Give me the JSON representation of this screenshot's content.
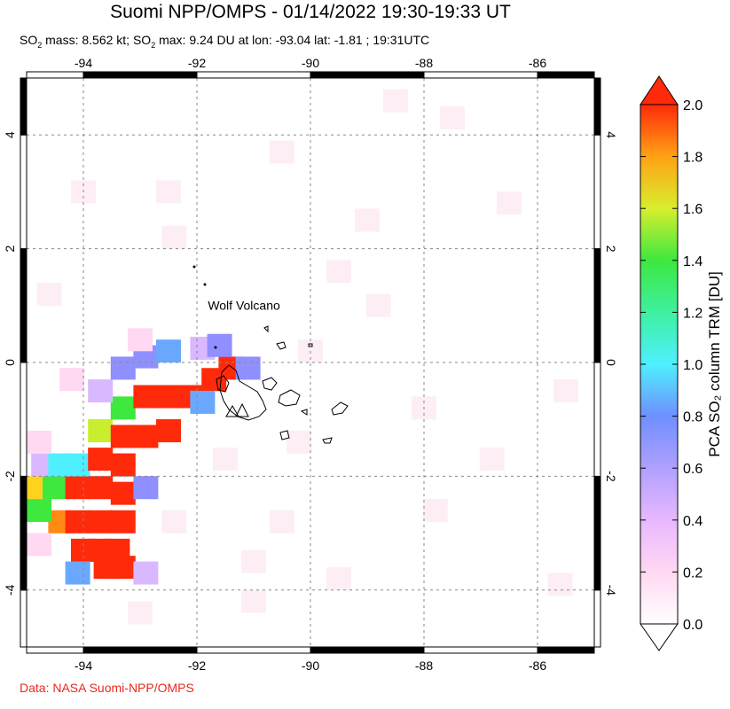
{
  "title": "Suomi NPP/OMPS - 01/14/2022 19:30-19:33 UT",
  "subtitle": {
    "so2_1": "SO",
    "mass_label": " mass: 8.562 kt; SO",
    "max_label": " max: 9.24 DU at lon: -93.04 lat: -1.81 ; 19:31UTC",
    "sub": "2"
  },
  "credit": "Data: NASA Suomi-NPP/OMPS",
  "map": {
    "lon_range": [
      -95,
      -85
    ],
    "lat_range": [
      -5,
      5
    ],
    "lon_ticks": [
      -94,
      -92,
      -90,
      -88,
      -86
    ],
    "lat_ticks": [
      -4,
      -2,
      0,
      2,
      4
    ],
    "lon_tick_labels": [
      "-94",
      "-92",
      "-90",
      "-88",
      "-86"
    ],
    "lat_tick_labels": [
      "-4",
      "-2",
      "0",
      "2",
      "4"
    ],
    "annotation": {
      "text": "Wolf Volcano",
      "lon": -91.37,
      "lat": 0.02
    },
    "grid": "dashed"
  },
  "colorbar": {
    "label": "PCA SO₂ column TRM [DU]",
    "min": 0.0,
    "max": 2.0,
    "tick_labels": [
      "0.0",
      "0.2",
      "0.4",
      "0.6",
      "0.8",
      "1.0",
      "1.2",
      "1.4",
      "1.6",
      "1.8",
      "2.0"
    ],
    "colors": [
      "#ffffff",
      "#ffd8f2",
      "#d9b8ff",
      "#8f8fff",
      "#6aa8ff",
      "#4ef0ff",
      "#3ef07a",
      "#3ee83e",
      "#c8ee2e",
      "#ffd21e",
      "#ff8a12",
      "#ff2a0a"
    ]
  },
  "so2_pixels": [
    {
      "lon": -93.6,
      "lat": -3.6,
      "v": 2.0
    },
    {
      "lon": -93.3,
      "lat": -3.6,
      "v": 2.0
    },
    {
      "lon": -94.0,
      "lat": -3.3,
      "v": 2.0
    },
    {
      "lon": -93.7,
      "lat": -3.3,
      "v": 2.0
    },
    {
      "lon": -93.4,
      "lat": -3.3,
      "v": 2.0
    },
    {
      "lon": -94.4,
      "lat": -2.8,
      "v": 1.85
    },
    {
      "lon": -94.8,
      "lat": -2.6,
      "v": 1.45
    },
    {
      "lon": -94.1,
      "lat": -2.8,
      "v": 2.0
    },
    {
      "lon": -93.7,
      "lat": -2.8,
      "v": 2.0
    },
    {
      "lon": -93.3,
      "lat": -2.8,
      "v": 2.0
    },
    {
      "lon": -94.8,
      "lat": -2.2,
      "v": 1.65
    },
    {
      "lon": -94.5,
      "lat": -2.2,
      "v": 1.45
    },
    {
      "lon": -94.1,
      "lat": -2.2,
      "v": 2.0
    },
    {
      "lon": -93.7,
      "lat": -2.2,
      "v": 2.0
    },
    {
      "lon": -93.3,
      "lat": -2.3,
      "v": 2.0
    },
    {
      "lon": -92.9,
      "lat": -2.2,
      "v": 0.6
    },
    {
      "lon": -94.1,
      "lat": -1.8,
      "v": 1.0
    },
    {
      "lon": -93.7,
      "lat": -1.7,
      "v": 2.0
    },
    {
      "lon": -93.3,
      "lat": -1.8,
      "v": 2.0
    },
    {
      "lon": -93.7,
      "lat": -1.2,
      "v": 1.5
    },
    {
      "lon": -93.3,
      "lat": -1.3,
      "v": 2.0
    },
    {
      "lon": -92.9,
      "lat": -1.3,
      "v": 2.0
    },
    {
      "lon": -92.5,
      "lat": -1.2,
      "v": 2.0
    },
    {
      "lon": -93.3,
      "lat": -0.8,
      "v": 1.45
    },
    {
      "lon": -92.9,
      "lat": -0.6,
      "v": 2.0
    },
    {
      "lon": -92.5,
      "lat": -0.6,
      "v": 2.0
    },
    {
      "lon": -92.1,
      "lat": -0.6,
      "v": 2.0
    },
    {
      "lon": -91.7,
      "lat": -0.3,
      "v": 2.0
    },
    {
      "lon": -91.4,
      "lat": -0.1,
      "v": 2.0
    },
    {
      "lon": -93.7,
      "lat": -0.5,
      "v": 0.45
    },
    {
      "lon": -93.3,
      "lat": -0.1,
      "v": 0.65
    },
    {
      "lon": -92.9,
      "lat": 0.1,
      "v": 0.7
    },
    {
      "lon": -92.5,
      "lat": 0.2,
      "v": 0.75
    },
    {
      "lon": -91.9,
      "lat": 0.25,
      "v": 0.4
    },
    {
      "lon": -91.6,
      "lat": 0.3,
      "v": 0.55
    },
    {
      "lon": -91.9,
      "lat": -0.7,
      "v": 0.85
    },
    {
      "lon": -91.1,
      "lat": -0.1,
      "v": 0.6
    },
    {
      "lon": -94.7,
      "lat": -1.8,
      "v": 0.45
    },
    {
      "lon": -94.4,
      "lat": -1.8,
      "v": 0.95
    },
    {
      "lon": -94.8,
      "lat": -1.4,
      "v": 0.3
    },
    {
      "lon": -94.1,
      "lat": -3.7,
      "v": 0.75
    },
    {
      "lon": -92.9,
      "lat": -3.7,
      "v": 0.4
    },
    {
      "lon": -94.8,
      "lat": -3.2,
      "v": 0.2
    },
    {
      "lon": -94.7,
      "lat": -0.8,
      "v": 0.15
    },
    {
      "lon": -94.2,
      "lat": -0.3,
      "v": 0.2
    },
    {
      "lon": -93.6,
      "lat": 0.5,
      "v": 0.15
    },
    {
      "lon": -93.0,
      "lat": 0.4,
      "v": 0.25
    },
    {
      "lon": -92.0,
      "lat": 0.8,
      "v": 0.15
    },
    {
      "lon": -92.5,
      "lat": 3.0,
      "v": 0.1
    },
    {
      "lon": -90.5,
      "lat": 3.7,
      "v": 0.1
    },
    {
      "lon": -89.5,
      "lat": 1.6,
      "v": 0.12
    },
    {
      "lon": -88.8,
      "lat": 1.0,
      "v": 0.1
    },
    {
      "lon": -90.0,
      "lat": 0.2,
      "v": 0.1
    },
    {
      "lon": -91.5,
      "lat": -1.7,
      "v": 0.12
    },
    {
      "lon": -90.5,
      "lat": -2.8,
      "v": 0.1
    },
    {
      "lon": -89.5,
      "lat": -3.8,
      "v": 0.1
    },
    {
      "lon": -87.8,
      "lat": -2.6,
      "v": 0.12
    },
    {
      "lon": -86.8,
      "lat": -1.7,
      "v": 0.1
    },
    {
      "lon": -86.5,
      "lat": 2.8,
      "v": 0.1
    },
    {
      "lon": -87.5,
      "lat": 4.3,
      "v": 0.1
    },
    {
      "lon": -88.5,
      "lat": 4.6,
      "v": 0.1
    },
    {
      "lon": -93.0,
      "lat": -4.4,
      "v": 0.1
    },
    {
      "lon": -91.0,
      "lat": -4.2,
      "v": 0.12
    },
    {
      "lon": -85.6,
      "lat": -3.9,
      "v": 0.1
    },
    {
      "lon": -85.5,
      "lat": -0.5,
      "v": 0.1
    },
    {
      "lon": -88.0,
      "lat": -0.8,
      "v": 0.1
    },
    {
      "lon": -92.4,
      "lat": 2.2,
      "v": 0.1
    },
    {
      "lon": -94.6,
      "lat": 1.2,
      "v": 0.12
    },
    {
      "lon": -94.0,
      "lat": 3.0,
      "v": 0.1
    },
    {
      "lon": -89.0,
      "lat": 2.5,
      "v": 0.1
    },
    {
      "lon": -90.2,
      "lat": -1.4,
      "v": 0.1
    },
    {
      "lon": -92.4,
      "lat": -2.8,
      "v": 0.1
    },
    {
      "lon": -91.0,
      "lat": -3.5,
      "v": 0.1
    }
  ]
}
